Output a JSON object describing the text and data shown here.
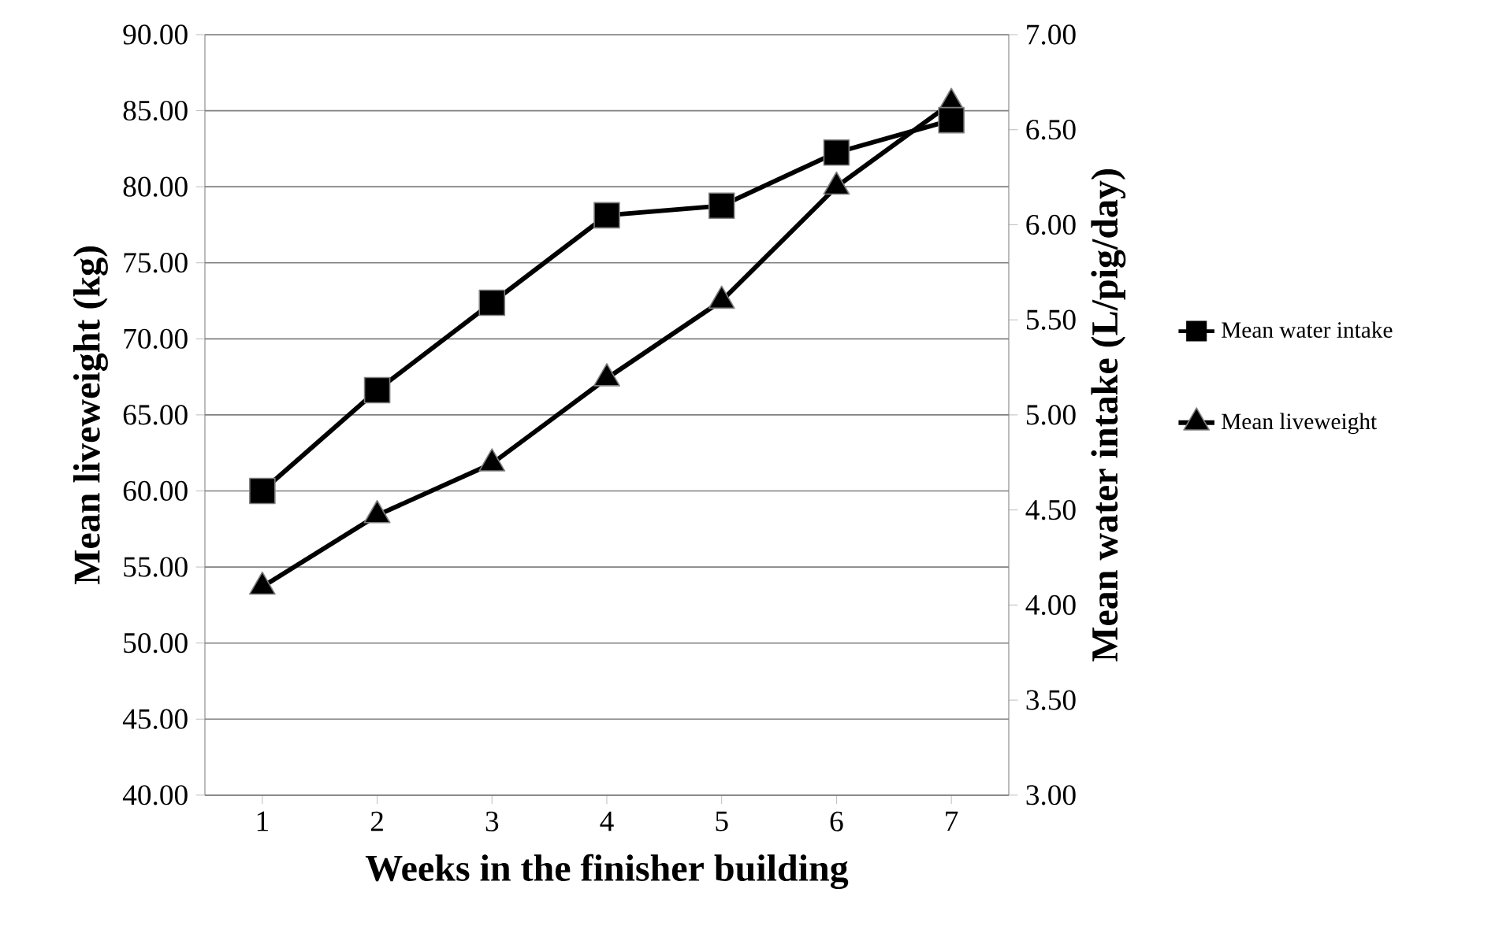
{
  "chart_data": {
    "type": "line",
    "xlabel": "Weeks in the finisher building",
    "ylabel": "Mean liveweight (kg)",
    "y2label": "Mean water intake (L/pig/day)",
    "categories": [
      "1",
      "2",
      "3",
      "4",
      "5",
      "6",
      "7"
    ],
    "series": [
      {
        "name": "Mean liveweight",
        "color": "#000000",
        "marker": "triangle",
        "values": [
          53.7,
          58.4,
          61.8,
          67.4,
          72.5,
          80.0,
          85.5
        ]
      },
      {
        "name": "Mean water intake",
        "color": "#000000",
        "marker": "square",
        "axis": "y2",
        "values": [
          4.6,
          5.13,
          5.59,
          6.05,
          6.1,
          6.38,
          6.55
        ]
      }
    ],
    "ylim": [
      40,
      90
    ],
    "yticks": [
      {
        "value": 40,
        "label": "40.00"
      },
      {
        "value": 45,
        "label": "45.00"
      },
      {
        "value": 50,
        "label": "50.00"
      },
      {
        "value": 55,
        "label": "55.00"
      },
      {
        "value": 60,
        "label": "60.00"
      },
      {
        "value": 65,
        "label": "65.00"
      },
      {
        "value": 70,
        "label": "70.00"
      },
      {
        "value": 75,
        "label": "75.00"
      },
      {
        "value": 80,
        "label": "80.00"
      },
      {
        "value": 85,
        "label": "85.00"
      },
      {
        "value": 90,
        "label": "90.00"
      }
    ],
    "y2lim": [
      3,
      7
    ],
    "y2ticks": [
      {
        "value": 3,
        "label": "3.00"
      },
      {
        "value": 3.5,
        "label": "3.50"
      },
      {
        "value": 4,
        "label": "4.00"
      },
      {
        "value": 4.5,
        "label": "4.50"
      },
      {
        "value": 5,
        "label": "5.00"
      },
      {
        "value": 5.5,
        "label": "5.50"
      },
      {
        "value": 6,
        "label": "6.00"
      },
      {
        "value": 6.5,
        "label": "6.50"
      },
      {
        "value": 7,
        "label": "7.00"
      }
    ],
    "grid": "y",
    "legend": "right",
    "line_style": "solid"
  }
}
